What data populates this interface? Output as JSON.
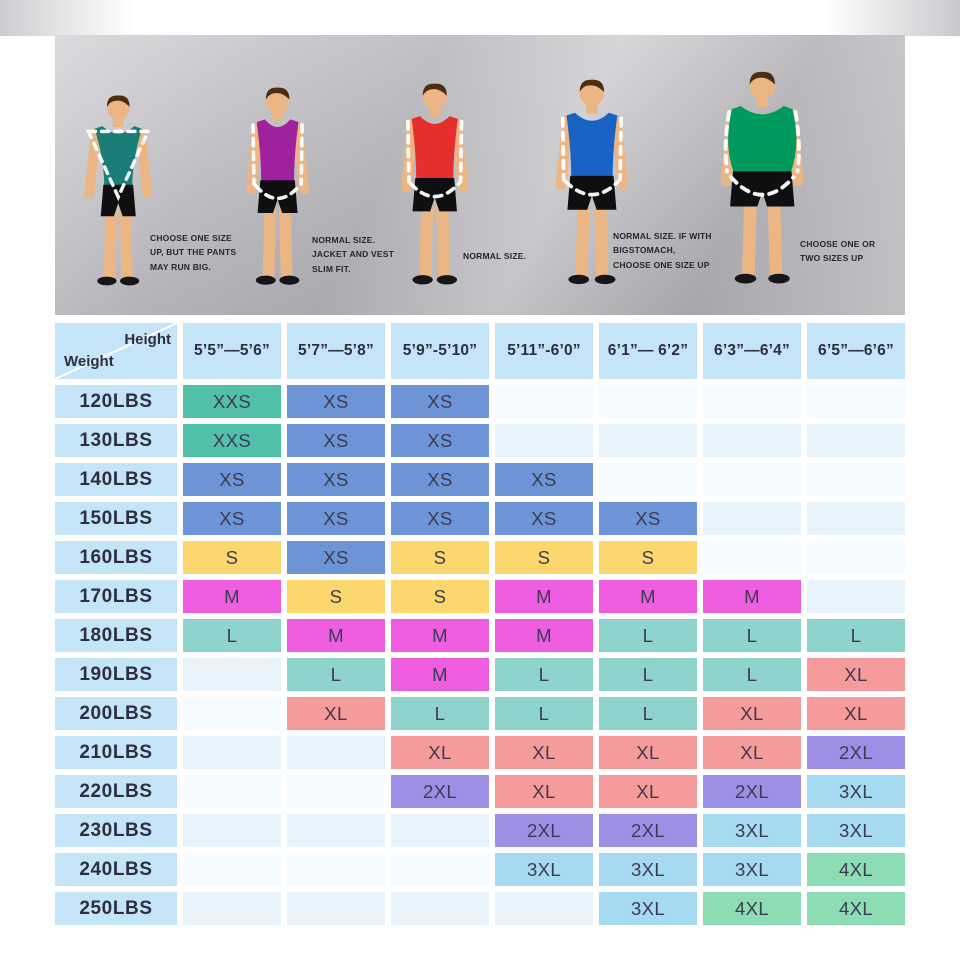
{
  "banner": {
    "figures": [
      {
        "name": "athletic-v-taper",
        "shirt_color": "#1a7d78",
        "build": "v",
        "note": "CHOOSE ONE SIZE UP, BUT THE PANTS MAY RUN BIG."
      },
      {
        "name": "slim",
        "shirt_color": "#a0219e",
        "build": "slim",
        "note": "NORMAL SIZE. JACKET AND VEST SLIM FIT."
      },
      {
        "name": "regular",
        "shirt_color": "#e62f2d",
        "build": "regular",
        "note": "NORMAL SIZE."
      },
      {
        "name": "broad",
        "shirt_color": "#1a63c4",
        "build": "broad",
        "note": "NORMAL SIZE. IF WITH BIGSTOMACH, CHOOSE ONE SIZE UP"
      },
      {
        "name": "heavyset",
        "shirt_color": "#009a5f",
        "build": "round",
        "note": "CHOOSE ONE OR TWO SIZES UP"
      }
    ]
  },
  "chart_data": {
    "type": "table",
    "title": "Men's size chart by height and weight",
    "corner": {
      "height_label": "Height",
      "weight_label": "Weight"
    },
    "height_columns": [
      "5’5”—5’6”",
      "5’7”—5’8”",
      "5’9”-5’10”",
      "5’11”-6’0”",
      "6’1”— 6’2”",
      "6’3”—6’4”",
      "6’5”—6’6”"
    ],
    "weight_rows": [
      {
        "weight": "120LBS",
        "sizes": [
          "XXS",
          "XS",
          "XS",
          "",
          "",
          "",
          ""
        ]
      },
      {
        "weight": "130LBS",
        "sizes": [
          "XXS",
          "XS",
          "XS",
          "",
          "",
          "",
          ""
        ]
      },
      {
        "weight": "140LBS",
        "sizes": [
          "XS",
          "XS",
          "XS",
          "XS",
          "",
          "",
          ""
        ]
      },
      {
        "weight": "150LBS",
        "sizes": [
          "XS",
          "XS",
          "XS",
          "XS",
          "XS",
          "",
          ""
        ]
      },
      {
        "weight": "160LBS",
        "sizes": [
          "S",
          "XS",
          "S",
          "S",
          "S",
          "",
          ""
        ]
      },
      {
        "weight": "170LBS",
        "sizes": [
          "M",
          "S",
          "S",
          "M",
          "M",
          "M",
          ""
        ]
      },
      {
        "weight": "180LBS",
        "sizes": [
          "L",
          "M",
          "M",
          "M",
          "L",
          "L",
          "L"
        ]
      },
      {
        "weight": "190LBS",
        "sizes": [
          "",
          "L",
          "M",
          "L",
          "L",
          "L",
          "XL"
        ]
      },
      {
        "weight": "200LBS",
        "sizes": [
          "",
          "XL",
          "L",
          "L",
          "L",
          "XL",
          "XL"
        ]
      },
      {
        "weight": "210LBS",
        "sizes": [
          "",
          "",
          "XL",
          "XL",
          "XL",
          "XL",
          "2XL"
        ]
      },
      {
        "weight": "220LBS",
        "sizes": [
          "",
          "",
          "2XL",
          "XL",
          "XL",
          "2XL",
          "3XL"
        ]
      },
      {
        "weight": "230LBS",
        "sizes": [
          "",
          "",
          "",
          "2XL",
          "2XL",
          "3XL",
          "3XL"
        ]
      },
      {
        "weight": "240LBS",
        "sizes": [
          "",
          "",
          "",
          "3XL",
          "3XL",
          "3XL",
          "4XL"
        ]
      },
      {
        "weight": "250LBS",
        "sizes": [
          "",
          "",
          "",
          "",
          "3XL",
          "4XL",
          "4XL"
        ]
      }
    ],
    "size_colors": {
      "XXS": "#52bfa9",
      "XS": "#6e94d8",
      "S": "#fbd76e",
      "M": "#ef5ee0",
      "L": "#8fd3cd",
      "XL": "#f69b9b",
      "2XL": "#9e8fe6",
      "3XL": "#a6daf1",
      "4XL": "#8edcb4"
    },
    "header_bg": "#c4e5f8",
    "legend_position": "none",
    "grid": false
  }
}
